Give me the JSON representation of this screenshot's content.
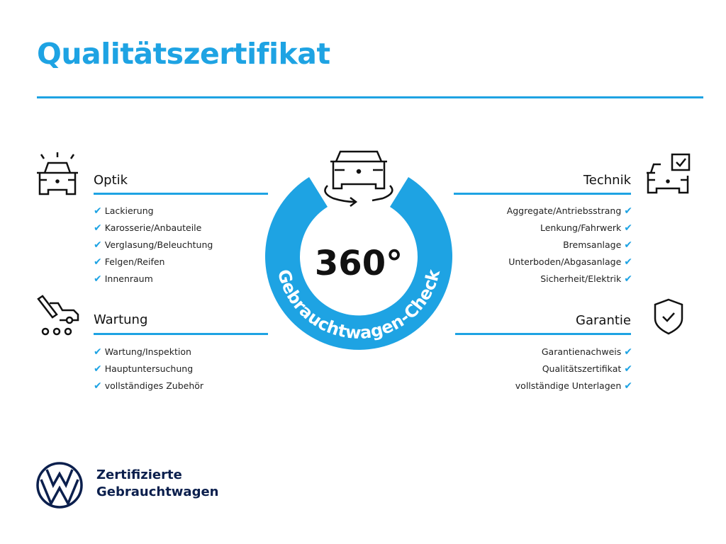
{
  "title": "Qualitätszertifikat",
  "colors": {
    "accent": "#1ea3e3",
    "brand_navy": "#0b1f4d"
  },
  "center": {
    "big": "360°",
    "ring_text": "Gebrauchtwagen-Check",
    "icon": "car-360-rotate-icon"
  },
  "sections": {
    "optik": {
      "heading": "Optik",
      "icon": "car-lights-icon",
      "items": [
        "Lackierung",
        "Karosserie/Anbauteile",
        "Verglasung/Beleuchtung",
        "Felgen/Reifen",
        "Innenraum"
      ]
    },
    "wartung": {
      "heading": "Wartung",
      "icon": "service-van-wrench-icon",
      "items": [
        "Wartung/Inspektion",
        "Hauptuntersuchung",
        "vollständiges Zubehör"
      ]
    },
    "technik": {
      "heading": "Technik",
      "icon": "car-checkbox-icon",
      "items": [
        "Aggregate/Antriebsstrang",
        "Lenkung/Fahrwerk",
        "Bremsanlage",
        "Unterboden/Abgasanlage",
        "Sicherheit/Elektrik"
      ]
    },
    "garantie": {
      "heading": "Garantie",
      "icon": "shield-check-icon",
      "items": [
        "Garantienachweis",
        "Qualitätszertifikat",
        "vollständige Unterlagen"
      ]
    }
  },
  "check_glyph": "✔",
  "footer": {
    "line1": "Zertifizierte",
    "line2": "Gebrauchtwagen",
    "logo": "vw-logo"
  }
}
